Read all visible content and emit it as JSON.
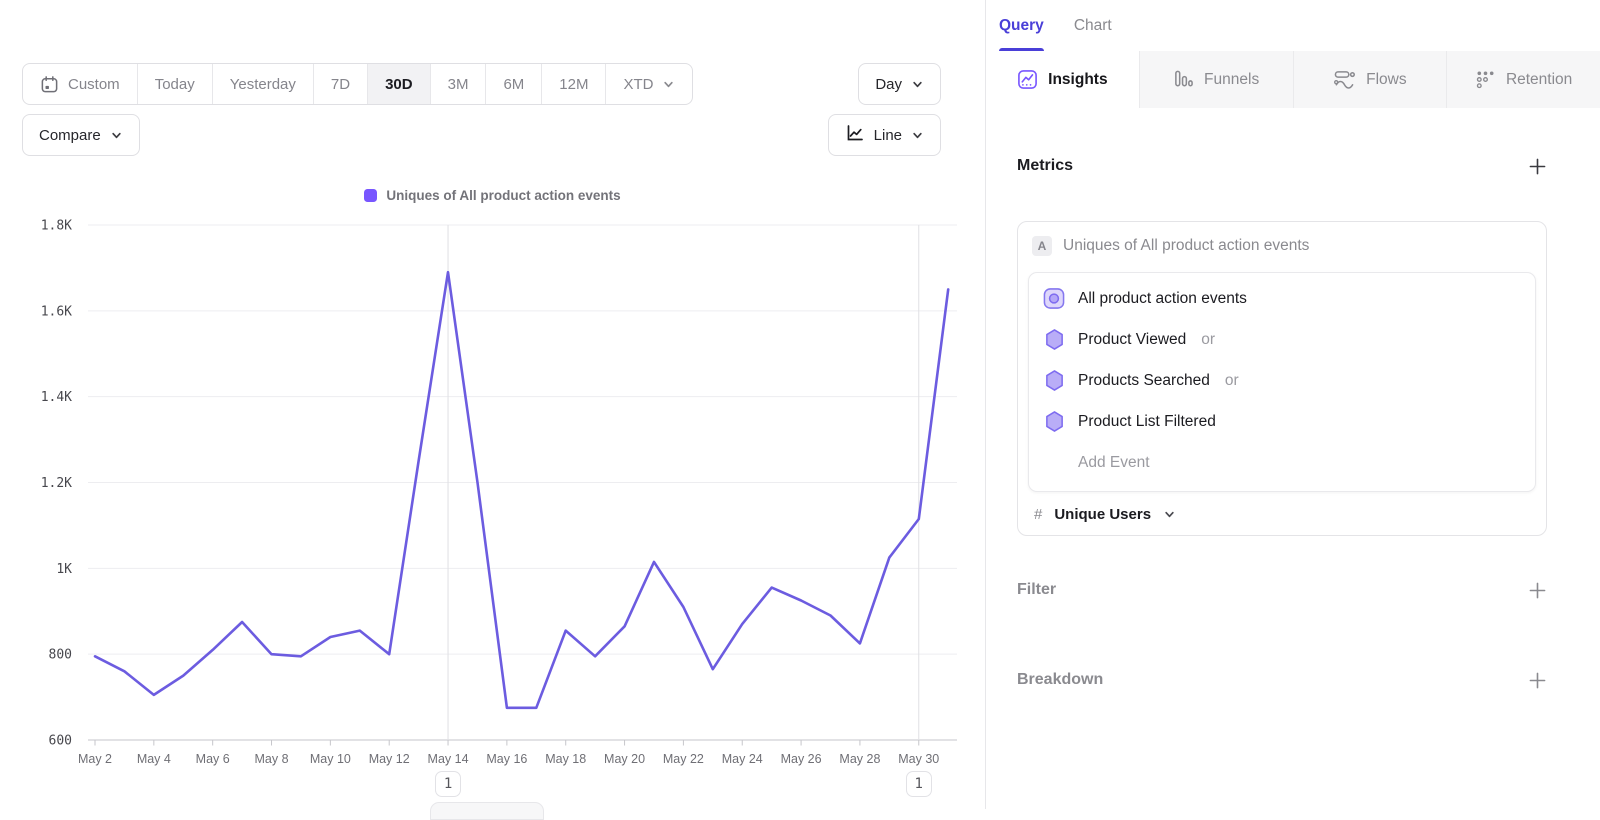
{
  "toolbar": {
    "date_ranges": [
      {
        "label": "Custom",
        "icon": "calendar-icon"
      },
      {
        "label": "Today"
      },
      {
        "label": "Yesterday"
      },
      {
        "label": "7D"
      },
      {
        "label": "30D"
      },
      {
        "label": "3M"
      },
      {
        "label": "6M"
      },
      {
        "label": "12M"
      },
      {
        "label": "XTD",
        "chevron": true
      }
    ],
    "active_range": "30D",
    "granularity_label": "Day",
    "compare_label": "Compare",
    "chart_type_label": "Line"
  },
  "chart_data": {
    "type": "line",
    "series_name": "Uniques of All product action events",
    "legend": [
      "Uniques of All product action events"
    ],
    "legend_position": "top-center",
    "line_color": "#6C5CE0",
    "legend_color": "#7856FF",
    "grid": "horizontal",
    "x": [
      "May 2",
      "May 3",
      "May 4",
      "May 5",
      "May 6",
      "May 7",
      "May 8",
      "May 9",
      "May 10",
      "May 11",
      "May 12",
      "May 13",
      "May 14",
      "May 15",
      "May 16",
      "May 17",
      "May 18",
      "May 19",
      "May 20",
      "May 21",
      "May 22",
      "May 23",
      "May 24",
      "May 25",
      "May 26",
      "May 27",
      "May 28",
      "May 29",
      "May 30",
      "May 31"
    ],
    "values": [
      795,
      760,
      705,
      750,
      810,
      875,
      800,
      795,
      840,
      855,
      800,
      1250,
      1690,
      1200,
      675,
      675,
      855,
      795,
      865,
      1015,
      910,
      765,
      870,
      955,
      925,
      890,
      825,
      1025,
      1115,
      1650
    ],
    "ylim": [
      600,
      1800
    ],
    "yticks": [
      {
        "value": 600,
        "label": "600"
      },
      {
        "value": 800,
        "label": "800"
      },
      {
        "value": 1000,
        "label": "1K"
      },
      {
        "value": 1200,
        "label": "1.2K"
      },
      {
        "value": 1400,
        "label": "1.4K"
      },
      {
        "value": 1600,
        "label": "1.6K"
      },
      {
        "value": 1800,
        "label": "1.8K"
      }
    ],
    "xtick_every": 2,
    "annotations": [
      {
        "label": "1",
        "x_label": "May 14"
      },
      {
        "label": "1",
        "x_label": "May 30"
      }
    ]
  },
  "panel": {
    "tabs": [
      {
        "label": "Query",
        "active": true
      },
      {
        "label": "Chart",
        "active": false
      }
    ],
    "report_tabs": [
      {
        "label": "Insights",
        "icon": "insights-icon",
        "active": true
      },
      {
        "label": "Funnels",
        "icon": "funnels-icon",
        "active": false
      },
      {
        "label": "Flows",
        "icon": "flows-icon",
        "active": false
      },
      {
        "label": "Retention",
        "icon": "retention-icon",
        "active": false
      }
    ],
    "metrics": {
      "title": "Metrics",
      "series_letter": "A",
      "series_title": "Uniques of All product action events",
      "events": [
        {
          "name": "All product action events",
          "icon": "all-events-icon"
        },
        {
          "name": "Product Viewed",
          "icon": "hexagon-icon",
          "suffix": "or"
        },
        {
          "name": "Products Searched",
          "icon": "hexagon-icon",
          "suffix": "or"
        },
        {
          "name": "Product List Filtered",
          "icon": "hexagon-icon"
        }
      ],
      "add_event_label": "Add Event",
      "measurement": {
        "symbol": "#",
        "label": "Unique Users"
      }
    },
    "sections": [
      {
        "title": "Filter"
      },
      {
        "title": "Breakdown"
      }
    ]
  }
}
